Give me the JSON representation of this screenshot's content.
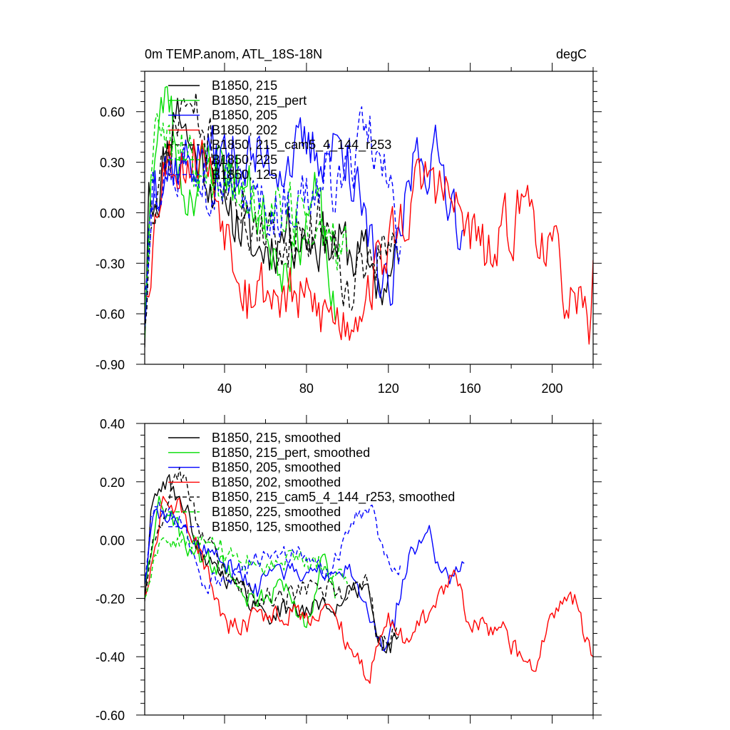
{
  "chart_data": [
    {
      "type": "line",
      "title": "0m TEMP.anom, ATL_18S-18N",
      "units": "degC",
      "xlim": [
        1,
        220
      ],
      "ylim": [
        -0.9,
        0.84
      ],
      "xticks": [
        40,
        80,
        120,
        160,
        200
      ],
      "xtick_labels": [
        "40",
        "80",
        "120",
        "160",
        "200"
      ],
      "yticks": [
        -0.9,
        -0.6,
        -0.3,
        0.0,
        0.3,
        0.6
      ],
      "ytick_labels": [
        "-0.90",
        "-0.60",
        "-0.30",
        "0.00",
        "0.30",
        "0.60"
      ],
      "grid": false,
      "legend_position": "top-left",
      "series": [
        {
          "name": "B1850, 215",
          "color": "#000000",
          "dash": "solid",
          "length": 125,
          "amp": 0.17,
          "trend": -0.09,
          "seed": 11,
          "anchors": [
            [
              1,
              -0.8
            ],
            [
              2,
              -0.35
            ],
            [
              3,
              0.18
            ],
            [
              6,
              0.05
            ],
            [
              17,
              0.68
            ],
            [
              23,
              0.4
            ],
            [
              40,
              0.1
            ],
            [
              55,
              -0.25
            ],
            [
              70,
              -0.1
            ],
            [
              90,
              -0.15
            ],
            [
              110,
              -0.3
            ],
            [
              118,
              -0.45
            ],
            [
              125,
              -0.3
            ]
          ]
        },
        {
          "name": "B1850, 215_pert",
          "color": "#00dd00",
          "dash": "solid",
          "length": 94,
          "amp": 0.17,
          "trend": -0.1,
          "seed": 23,
          "anchors": [
            [
              1,
              -0.75
            ],
            [
              2,
              -0.4
            ],
            [
              4,
              0.2
            ],
            [
              12,
              0.75
            ],
            [
              20,
              0.1
            ],
            [
              36,
              0.35
            ],
            [
              50,
              0.15
            ],
            [
              70,
              -0.3
            ],
            [
              85,
              0.1
            ],
            [
              94,
              -0.64
            ]
          ]
        },
        {
          "name": "B1850, 205",
          "color": "#0000ff",
          "dash": "solid",
          "length": 157,
          "amp": 0.17,
          "trend": -0.12,
          "seed": 37,
          "anchors": [
            [
              1,
              -0.7
            ],
            [
              3,
              -0.1
            ],
            [
              6,
              0.25
            ],
            [
              30,
              0.35
            ],
            [
              60,
              0.3
            ],
            [
              100,
              0.4
            ],
            [
              110,
              -0.2
            ],
            [
              121,
              -0.55
            ],
            [
              133,
              0.37
            ],
            [
              145,
              0.3
            ],
            [
              157,
              -0.1
            ]
          ]
        },
        {
          "name": "B1850, 202",
          "color": "#ff0000",
          "dash": "solid",
          "length": 220,
          "amp": 0.17,
          "trend": -0.24,
          "seed": 53,
          "anchors": [
            [
              1,
              -0.5
            ],
            [
              10,
              0.3
            ],
            [
              30,
              0.35
            ],
            [
              50,
              -0.4
            ],
            [
              100,
              -0.65
            ],
            [
              140,
              0.25
            ],
            [
              170,
              -0.3
            ],
            [
              187,
              0.1
            ],
            [
              212,
              -0.6
            ],
            [
              218,
              -0.78
            ],
            [
              220,
              -0.28
            ]
          ]
        },
        {
          "name": "B1850, 215_cam5_4_144_r253",
          "color": "#000000",
          "dash": "6,4",
          "length": 124,
          "amp": 0.17,
          "trend": -0.1,
          "seed": 71,
          "anchors": [
            [
              1,
              -0.7
            ],
            [
              4,
              -0.1
            ],
            [
              20,
              0.68
            ],
            [
              40,
              0.2
            ],
            [
              60,
              -0.2
            ],
            [
              90,
              -0.05
            ],
            [
              100,
              -0.4
            ],
            [
              112,
              -0.3
            ],
            [
              124,
              -0.2
            ]
          ]
        },
        {
          "name": "B1850, 225",
          "color": "#00dd00",
          "dash": "6,4",
          "length": 100,
          "amp": 0.17,
          "trend": -0.09,
          "seed": 89,
          "anchors": [
            [
              1,
              -0.6
            ],
            [
              4,
              0.2
            ],
            [
              8,
              0.52
            ],
            [
              20,
              0.3
            ],
            [
              50,
              0.1
            ],
            [
              80,
              -0.05
            ],
            [
              100,
              -0.25
            ]
          ]
        },
        {
          "name": "B1850, 125",
          "color": "#0000ff",
          "dash": "6,4",
          "length": 126,
          "amp": 0.17,
          "trend": -0.09,
          "seed": 97,
          "anchors": [
            [
              1,
              -0.5
            ],
            [
              5,
              0.25
            ],
            [
              30,
              0.3
            ],
            [
              60,
              0.0
            ],
            [
              95,
              0.2
            ],
            [
              110,
              0.42
            ],
            [
              120,
              0.15
            ],
            [
              126,
              -0.2
            ]
          ]
        }
      ]
    },
    {
      "type": "line",
      "xlim": [
        1,
        220
      ],
      "ylim": [
        -0.6,
        0.4
      ],
      "xticks": [
        40,
        80,
        120,
        160,
        200
      ],
      "xtick_labels": [],
      "yticks": [
        -0.6,
        -0.4,
        -0.2,
        0.0,
        0.2,
        0.4
      ],
      "ytick_labels": [
        "-0.60",
        "-0.40",
        "-0.20",
        "0.00",
        "0.20",
        "0.40"
      ],
      "grid": false,
      "legend_position": "top-left",
      "series": [
        {
          "name": "B1850, 215, smoothed",
          "color": "#000000",
          "dash": "solid",
          "length": 125,
          "amp": 0.035,
          "seed": 111,
          "anchors": [
            [
              1,
              -0.21
            ],
            [
              4,
              0.1
            ],
            [
              10,
              0.2
            ],
            [
              18,
              0.15
            ],
            [
              30,
              -0.05
            ],
            [
              45,
              -0.15
            ],
            [
              60,
              -0.25
            ],
            [
              80,
              -0.23
            ],
            [
              95,
              -0.22
            ],
            [
              110,
              -0.15
            ],
            [
              118,
              -0.38
            ],
            [
              125,
              -0.33
            ]
          ]
        },
        {
          "name": "B1850, 215_pert, smoothed",
          "color": "#00dd00",
          "dash": "solid",
          "length": 94,
          "amp": 0.035,
          "seed": 123,
          "anchors": [
            [
              1,
              -0.15
            ],
            [
              8,
              0.15
            ],
            [
              15,
              0.05
            ],
            [
              25,
              -0.05
            ],
            [
              40,
              -0.1
            ],
            [
              55,
              -0.22
            ],
            [
              70,
              -0.15
            ],
            [
              80,
              -0.3
            ],
            [
              88,
              -0.05
            ],
            [
              94,
              -0.2
            ]
          ]
        },
        {
          "name": "B1850, 205, smoothed",
          "color": "#0000ff",
          "dash": "solid",
          "length": 157,
          "amp": 0.03,
          "seed": 137,
          "anchors": [
            [
              1,
              -0.15
            ],
            [
              5,
              0.08
            ],
            [
              10,
              0.1
            ],
            [
              20,
              0.05
            ],
            [
              35,
              -0.05
            ],
            [
              55,
              -0.15
            ],
            [
              75,
              -0.1
            ],
            [
              90,
              -0.12
            ],
            [
              100,
              -0.1
            ],
            [
              110,
              -0.25
            ],
            [
              118,
              -0.38
            ],
            [
              123,
              -0.3
            ],
            [
              130,
              -0.05
            ],
            [
              135,
              0.0
            ],
            [
              140,
              0.05
            ],
            [
              145,
              -0.1
            ],
            [
              150,
              -0.15
            ],
            [
              157,
              -0.08
            ]
          ]
        },
        {
          "name": "B1850, 202, smoothed",
          "color": "#ff0000",
          "dash": "solid",
          "length": 220,
          "amp": 0.035,
          "seed": 153,
          "anchors": [
            [
              1,
              -0.2
            ],
            [
              10,
              0.15
            ],
            [
              20,
              0.1
            ],
            [
              30,
              -0.1
            ],
            [
              42,
              -0.32
            ],
            [
              60,
              -0.25
            ],
            [
              80,
              -0.25
            ],
            [
              90,
              -0.22
            ],
            [
              100,
              -0.35
            ],
            [
              110,
              -0.48
            ],
            [
              120,
              -0.25
            ],
            [
              130,
              -0.35
            ],
            [
              140,
              -0.25
            ],
            [
              150,
              -0.12
            ],
            [
              155,
              -0.15
            ],
            [
              160,
              -0.3
            ],
            [
              175,
              -0.3
            ],
            [
              185,
              -0.4
            ],
            [
              192,
              -0.45
            ],
            [
              200,
              -0.25
            ],
            [
              210,
              -0.22
            ],
            [
              220,
              -0.4
            ]
          ]
        },
        {
          "name": "B1850, 215_cam5_4_144_r253, smoothed",
          "color": "#000000",
          "dash": "6,4",
          "length": 124,
          "amp": 0.035,
          "seed": 171,
          "anchors": [
            [
              1,
              -0.18
            ],
            [
              8,
              0.05
            ],
            [
              18,
              0.25
            ],
            [
              30,
              0.0
            ],
            [
              45,
              -0.15
            ],
            [
              65,
              -0.2
            ],
            [
              85,
              -0.15
            ],
            [
              100,
              -0.2
            ],
            [
              110,
              -0.15
            ],
            [
              116,
              -0.36
            ],
            [
              124,
              -0.3
            ]
          ]
        },
        {
          "name": "B1850, 225, smoothed",
          "color": "#00dd00",
          "dash": "6,4",
          "length": 100,
          "amp": 0.035,
          "seed": 189,
          "anchors": [
            [
              1,
              -0.2
            ],
            [
              6,
              -0.05
            ],
            [
              15,
              0.0
            ],
            [
              30,
              0.0
            ],
            [
              45,
              -0.05
            ],
            [
              60,
              -0.1
            ],
            [
              75,
              -0.05
            ],
            [
              85,
              -0.1
            ],
            [
              100,
              -0.15
            ]
          ]
        },
        {
          "name": "B1850, 125, smoothed",
          "color": "#0000ff",
          "dash": "6,4",
          "length": 126,
          "amp": 0.03,
          "seed": 197,
          "anchors": [
            [
              1,
              -0.15
            ],
            [
              4,
              0.08
            ],
            [
              10,
              0.1
            ],
            [
              20,
              0.05
            ],
            [
              30,
              -0.15
            ],
            [
              45,
              -0.12
            ],
            [
              60,
              -0.05
            ],
            [
              75,
              -0.05
            ],
            [
              90,
              -0.1
            ],
            [
              105,
              0.08
            ],
            [
              112,
              0.12
            ],
            [
              118,
              -0.05
            ],
            [
              126,
              -0.08
            ]
          ]
        }
      ]
    }
  ]
}
